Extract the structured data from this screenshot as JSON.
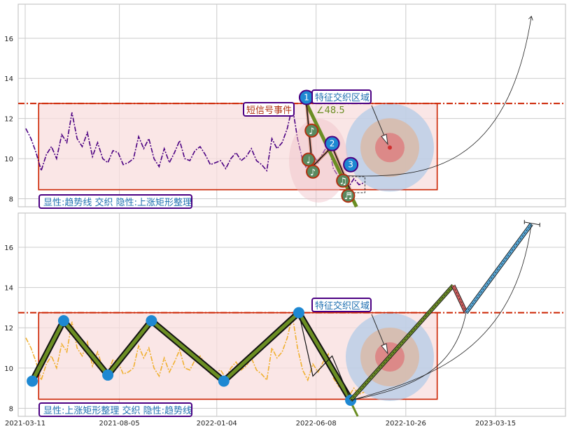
{
  "chart_data": [
    {
      "type": "line",
      "panel": "top",
      "ylim": [
        7.6,
        17.7
      ],
      "yticks": [
        8,
        10,
        12,
        14,
        16
      ],
      "grid": true,
      "resistance_line": 12.75,
      "rectangle": {
        "x0": "2021-04-01",
        "x1": "2022-12-14",
        "y0": 8.45,
        "y1": 12.75
      },
      "series": [
        {
          "style": "dashdot",
          "color": "#4b0082",
          "x": [
            "2021-03-12",
            "2021-03-20",
            "2021-03-28",
            "2021-04-05",
            "2021-04-13",
            "2021-04-21",
            "2021-04-29",
            "2021-05-07",
            "2021-05-15",
            "2021-05-23",
            "2021-05-31",
            "2021-06-08",
            "2021-06-16",
            "2021-06-24",
            "2021-07-02",
            "2021-07-10",
            "2021-07-18",
            "2021-07-26",
            "2021-08-03",
            "2021-08-11",
            "2021-08-19",
            "2021-08-27",
            "2021-09-04",
            "2021-09-12",
            "2021-09-20",
            "2021-09-28",
            "2021-10-06",
            "2021-10-14",
            "2021-10-22",
            "2021-10-30",
            "2021-11-07",
            "2021-11-15",
            "2021-11-23",
            "2021-12-01",
            "2021-12-09",
            "2021-12-17",
            "2021-12-25",
            "2022-01-02",
            "2022-01-10",
            "2022-01-18",
            "2022-01-26",
            "2022-02-03",
            "2022-02-11",
            "2022-02-19",
            "2022-02-27",
            "2022-03-07",
            "2022-03-15",
            "2022-03-23",
            "2022-03-31",
            "2022-04-08",
            "2022-04-16",
            "2022-04-24",
            "2022-05-02",
            "2022-05-10",
            "2022-05-18",
            "2022-05-26",
            "2022-06-03",
            "2022-06-11",
            "2022-06-19",
            "2022-06-27",
            "2022-07-05",
            "2022-07-13",
            "2022-07-21",
            "2022-07-29",
            "2022-08-06",
            "2022-08-14",
            "2022-08-22"
          ],
          "y": [
            11.5,
            11.0,
            10.3,
            9.4,
            10.2,
            10.6,
            10.0,
            11.2,
            10.8,
            12.3,
            11.0,
            10.6,
            11.3,
            10.1,
            10.8,
            10.0,
            9.8,
            10.4,
            10.3,
            9.7,
            9.8,
            10.0,
            11.1,
            10.5,
            11.0,
            10.0,
            9.6,
            10.5,
            9.8,
            10.3,
            10.9,
            10.0,
            9.9,
            10.4,
            10.6,
            10.2,
            9.7,
            9.8,
            9.9,
            9.5,
            10.0,
            10.3,
            9.9,
            10.1,
            10.5,
            9.9,
            9.7,
            9.4,
            11.0,
            10.5,
            10.8,
            11.5,
            12.6,
            11.0,
            9.9,
            9.4,
            10.2,
            9.8,
            10.3,
            10.7,
            9.5,
            9.1,
            8.9,
            8.6,
            9.0,
            8.7,
            8.8
          ]
        }
      ],
      "zigzag": [
        {
          "x": "2022-05-24",
          "y": 12.75
        },
        {
          "x": "2022-06-02",
          "y": 9.6
        },
        {
          "x": "2022-07-03",
          "y": 10.6
        },
        {
          "x": "2022-08-01",
          "y": 8.4
        }
      ],
      "markers": [
        {
          "label": "1",
          "x": "2022-05-24",
          "y": 13.05
        },
        {
          "label": "2",
          "x": "2022-07-03",
          "y": 10.75
        },
        {
          "label": "3",
          "x": "2022-08-01",
          "y": 9.7
        }
      ],
      "notes": [
        {
          "glyph": "♪",
          "x": "2022-06-01",
          "y": 11.4
        },
        {
          "glyph": "♩",
          "x": "2022-05-27",
          "y": 9.95
        },
        {
          "glyph": "♪",
          "x": "2022-06-03",
          "y": 9.35
        },
        {
          "glyph": "♫",
          "x": "2022-07-20",
          "y": 8.9
        },
        {
          "glyph": "♬",
          "x": "2022-07-28",
          "y": 8.15
        }
      ],
      "annotations": {
        "feature_zone": "特征交织区域",
        "short_signal": "短信号事件",
        "angle": "∠48.5",
        "legend": "显性:趋势线 交织 隐性:上涨矩形整理"
      },
      "target_x": "2023-05-10",
      "target_y": 17.1
    },
    {
      "type": "line",
      "panel": "bottom",
      "ylim": [
        7.6,
        17.7
      ],
      "yticks": [
        8,
        10,
        12,
        14,
        16
      ],
      "grid": true,
      "resistance_line": 12.75,
      "rectangle": {
        "x0": "2021-04-01",
        "x1": "2022-12-14",
        "y0": 8.45,
        "y1": 12.75
      },
      "series": [
        {
          "style": "dashdot",
          "color": "#f0b030",
          "x": [
            "2021-03-12",
            "2021-03-20",
            "2021-03-28",
            "2021-04-05",
            "2021-04-13",
            "2021-04-21",
            "2021-04-29",
            "2021-05-07",
            "2021-05-15",
            "2021-05-23",
            "2021-05-31",
            "2021-06-08",
            "2021-06-16",
            "2021-06-24",
            "2021-07-02",
            "2021-07-10",
            "2021-07-18",
            "2021-07-26",
            "2021-08-03",
            "2021-08-11",
            "2021-08-19",
            "2021-08-27",
            "2021-09-04",
            "2021-09-12",
            "2021-09-20",
            "2021-09-28",
            "2021-10-06",
            "2021-10-14",
            "2021-10-22",
            "2021-10-30",
            "2021-11-07",
            "2021-11-15",
            "2021-11-23",
            "2021-12-01",
            "2021-12-09",
            "2021-12-17",
            "2021-12-25",
            "2022-01-02",
            "2022-01-10",
            "2022-01-18",
            "2022-01-26",
            "2022-02-03",
            "2022-02-11",
            "2022-02-19",
            "2022-02-27",
            "2022-03-07",
            "2022-03-15",
            "2022-03-23",
            "2022-03-31",
            "2022-04-08",
            "2022-04-16",
            "2022-04-24",
            "2022-05-02",
            "2022-05-10",
            "2022-05-18",
            "2022-05-26",
            "2022-06-03",
            "2022-06-11",
            "2022-06-19",
            "2022-06-27",
            "2022-07-05",
            "2022-07-13",
            "2022-07-21",
            "2022-07-29",
            "2022-08-06",
            "2022-08-14",
            "2022-08-22"
          ],
          "y": [
            11.5,
            11.0,
            10.3,
            9.4,
            10.2,
            10.6,
            10.0,
            11.2,
            10.8,
            12.3,
            11.0,
            10.6,
            11.3,
            10.1,
            10.8,
            10.0,
            9.8,
            10.4,
            10.3,
            9.7,
            9.8,
            10.0,
            11.1,
            10.5,
            11.0,
            10.0,
            9.6,
            10.5,
            9.8,
            10.3,
            10.9,
            10.0,
            9.9,
            10.4,
            10.6,
            10.2,
            9.7,
            9.8,
            9.9,
            9.5,
            10.0,
            10.3,
            9.9,
            10.1,
            10.5,
            9.9,
            9.7,
            9.4,
            11.0,
            10.5,
            10.8,
            11.5,
            12.6,
            11.0,
            9.9,
            9.4,
            10.2,
            9.8,
            10.3,
            10.7,
            9.5,
            9.1,
            8.9,
            8.6,
            9.0,
            8.7,
            8.8
          ]
        }
      ],
      "zigzag": [
        {
          "x": "2021-03-22",
          "y": 9.35
        },
        {
          "x": "2021-05-10",
          "y": 12.35
        },
        {
          "x": "2021-07-18",
          "y": 9.65
        },
        {
          "x": "2021-09-24",
          "y": 12.35
        },
        {
          "x": "2022-01-15",
          "y": 9.35
        },
        {
          "x": "2022-05-12",
          "y": 12.75
        },
        {
          "x": "2022-08-01",
          "y": 8.4
        }
      ],
      "projection": [
        {
          "x": "2022-08-01",
          "y": 8.4
        },
        {
          "x": "2023-01-08",
          "y": 14.1
        },
        {
          "x": "2023-01-28",
          "y": 12.75
        },
        {
          "x": "2023-05-10",
          "y": 17.15
        }
      ],
      "annotations": {
        "feature_zone": "特征交织区域",
        "legend": "显性:上涨矩形整理 交织 隐性:趋势线"
      }
    }
  ],
  "x_axis": {
    "start": "2021-03-11",
    "end": "2023-06-01",
    "ticks": [
      "2021-03-11",
      "2021-08-05",
      "2022-01-04",
      "2022-06-08",
      "2022-10-26",
      "2023-03-15"
    ]
  },
  "colors": {
    "grid": "#cccccc",
    "frame": "#bbbbbb",
    "rectangle_fill": "#f8dede",
    "rectangle_edge": "#cc2200",
    "resistance": "#cc2200",
    "trend": "#6b8e23",
    "marker_blue": "#1e88d2",
    "note_green": "#5a8a60",
    "note_edge": "#b03010",
    "label_edge": "#4b0082",
    "label_text": "#1e6fb0",
    "projection_red": "#d66060",
    "projection_blue": "#5aaee0"
  }
}
